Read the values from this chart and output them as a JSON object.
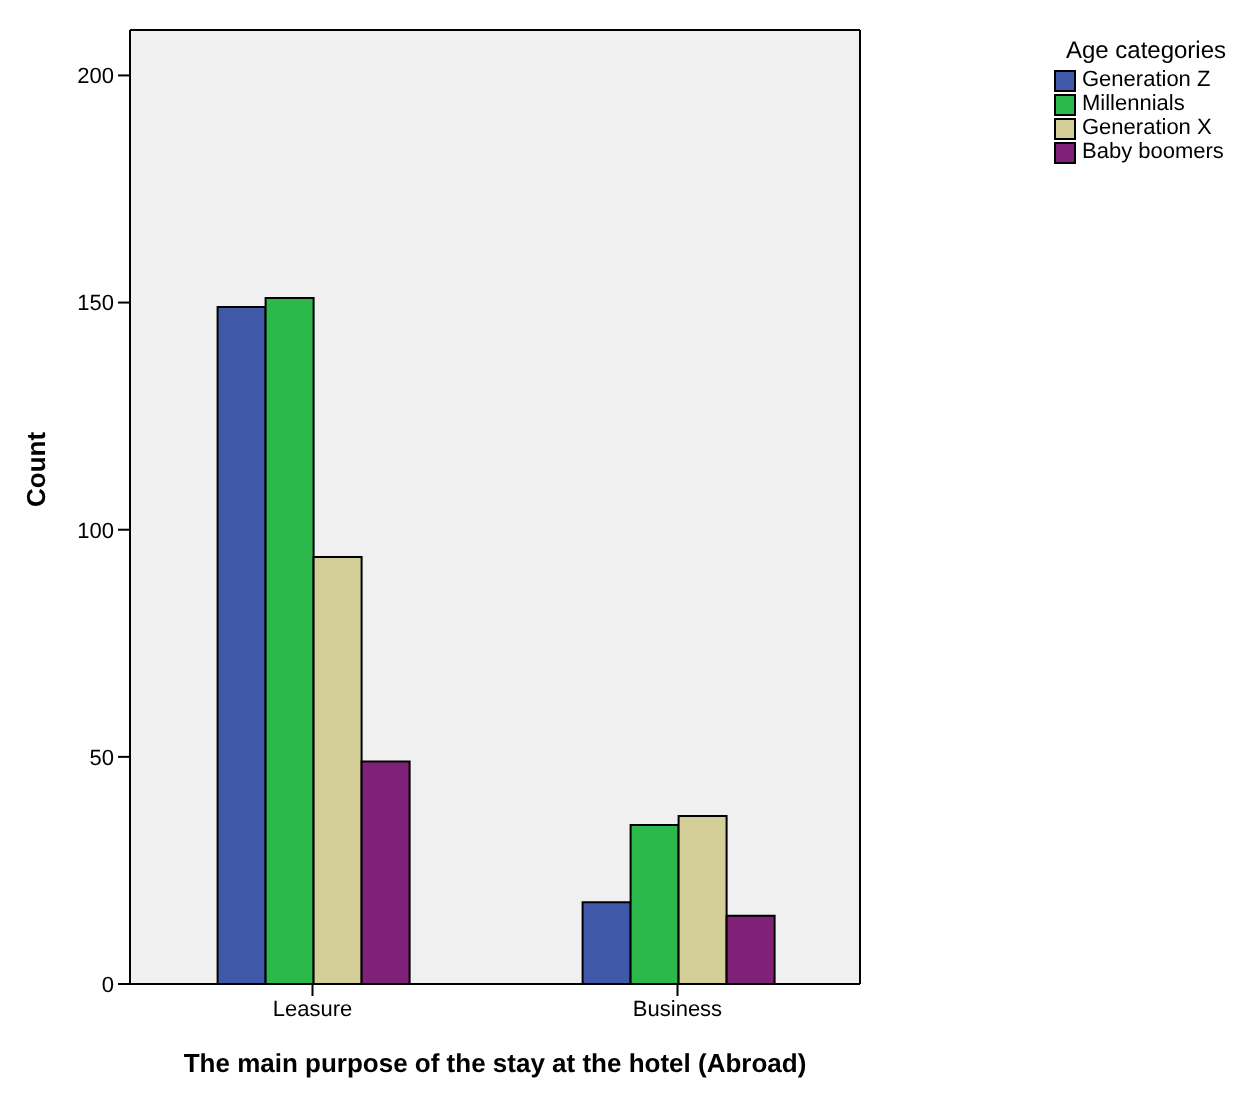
{
  "chart_data": {
    "type": "bar",
    "xlabel": "The main purpose of the stay at the hotel (Abroad)",
    "ylabel": "Count",
    "legend_title": "Age categories",
    "categories": [
      "Leasure",
      "Business"
    ],
    "series": [
      {
        "name": "Generation Z",
        "color": "#3f58a8",
        "values": [
          149,
          18
        ]
      },
      {
        "name": "Millennials",
        "color": "#2db84b",
        "values": [
          151,
          35
        ]
      },
      {
        "name": "Generation X",
        "color": "#d4cf98",
        "values": [
          94,
          37
        ]
      },
      {
        "name": "Baby boomers",
        "color": "#7f2277",
        "values": [
          49,
          15
        ]
      }
    ],
    "ylim": [
      0,
      210
    ],
    "yticks": [
      0,
      50,
      100,
      150,
      200
    ],
    "grid": false,
    "legend": "top right"
  }
}
